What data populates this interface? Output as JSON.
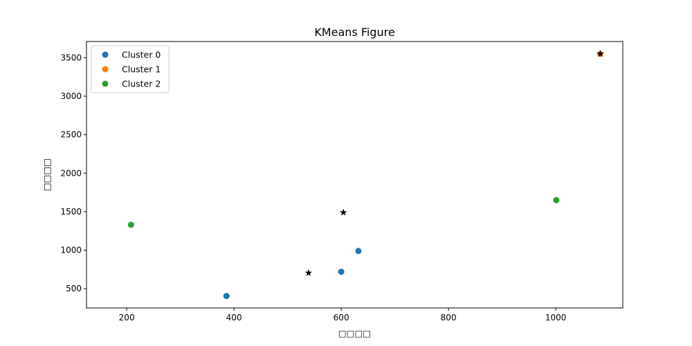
{
  "chart_data": {
    "type": "scatter",
    "title": "KMeans Figure",
    "xlabel": "□□□□",
    "ylabel": "□□□□",
    "xlim": [
      125,
      1125
    ],
    "ylim": [
      250,
      3710
    ],
    "x_ticks": [
      200,
      400,
      600,
      800,
      1000
    ],
    "y_ticks": [
      500,
      1000,
      1500,
      2000,
      2500,
      3000,
      3500
    ],
    "grid": false,
    "legend_position": "top-left",
    "series": [
      {
        "name": "Cluster 0",
        "color": "#1f77b4",
        "marker": "circle",
        "points": [
          {
            "x": 386,
            "y": 405
          },
          {
            "x": 600,
            "y": 720
          },
          {
            "x": 632,
            "y": 990
          }
        ]
      },
      {
        "name": "Cluster 1",
        "color": "#ff7f0e",
        "marker": "circle",
        "points": [
          {
            "x": 1083,
            "y": 3550
          }
        ]
      },
      {
        "name": "Cluster 2",
        "color": "#2ca02c",
        "marker": "circle",
        "points": [
          {
            "x": 208,
            "y": 1330
          },
          {
            "x": 1001,
            "y": 1650
          }
        ]
      }
    ],
    "centroids": {
      "color": "#000000",
      "marker": "star",
      "points": [
        {
          "x": 539,
          "y": 705
        },
        {
          "x": 1083,
          "y": 3550
        },
        {
          "x": 604,
          "y": 1490
        }
      ]
    }
  }
}
